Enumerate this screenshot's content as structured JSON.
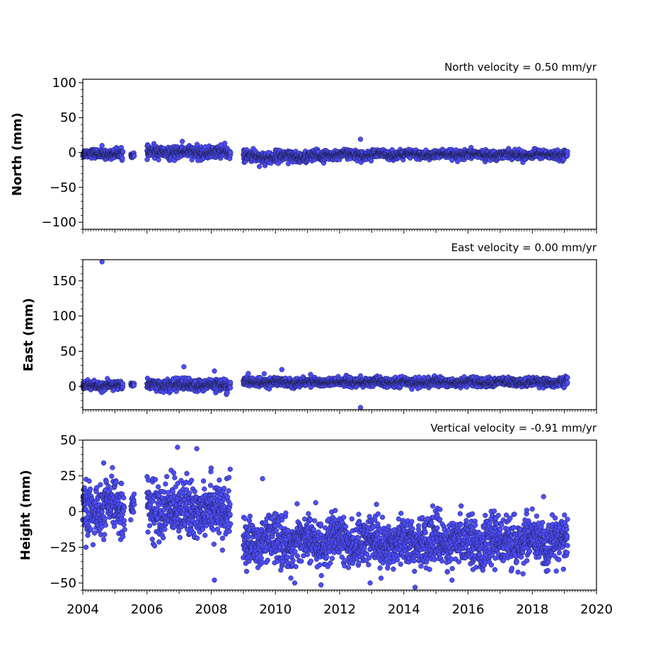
{
  "chart_data": [
    {
      "type": "scatter",
      "title": "North velocity = 0.50 mm/yr",
      "xlabel": "",
      "ylabel": "North (mm)",
      "xlim": [
        2004,
        2020
      ],
      "ylim": [
        -110,
        105
      ],
      "yticks": [
        100,
        50,
        0,
        -50,
        -100
      ],
      "ytick_labels": [
        "100",
        "50",
        "0",
        "−50",
        "−100"
      ],
      "marker_color": "#4d4dff",
      "outliers": [
        [
          2004.6,
          10
        ],
        [
          2007.1,
          16
        ],
        [
          2008.3,
          11
        ],
        [
          2009.5,
          -20
        ],
        [
          2010.4,
          -16
        ],
        [
          2012.65,
          19
        ],
        [
          2015.5,
          -11
        ]
      ],
      "segments": [
        {
          "start": 2004.0,
          "end": 2005.25,
          "center": -2,
          "spread": 3
        },
        {
          "start": 2005.5,
          "end": 2005.6,
          "center": -4,
          "spread": 2
        },
        {
          "start": 2006.0,
          "end": 2008.6,
          "center": 0,
          "spread": 4
        },
        {
          "start": 2009.0,
          "end": 2011.5,
          "center": -6,
          "spread": 4
        },
        {
          "start": 2011.5,
          "end": 2019.1,
          "center": -3,
          "spread": 3
        }
      ]
    },
    {
      "type": "scatter",
      "title": "East velocity = 0.00 mm/yr",
      "xlabel": "",
      "ylabel": "East (mm)",
      "xlim": [
        2004,
        2020
      ],
      "ylim": [
        -33,
        180
      ],
      "yticks": [
        150,
        100,
        50,
        0
      ],
      "ytick_labels": [
        "150",
        "100",
        "50",
        "0"
      ],
      "marker_color": "#4d4dff",
      "outliers": [
        [
          2004.6,
          177
        ],
        [
          2007.15,
          28
        ],
        [
          2008.1,
          22
        ],
        [
          2009.65,
          18
        ],
        [
          2010.2,
          24
        ],
        [
          2012.65,
          -30
        ],
        [
          2012.65,
          15
        ],
        [
          2014.25,
          -4
        ]
      ],
      "segments": [
        {
          "start": 2004.0,
          "end": 2005.25,
          "center": 1,
          "spread": 3
        },
        {
          "start": 2005.5,
          "end": 2005.6,
          "center": 3,
          "spread": 1
        },
        {
          "start": 2006.0,
          "end": 2008.6,
          "center": 2,
          "spread": 4
        },
        {
          "start": 2009.0,
          "end": 2019.1,
          "center": 6,
          "spread": 3
        }
      ]
    },
    {
      "type": "scatter",
      "title": "Vertical velocity = -0.91 mm/yr",
      "xlabel": "",
      "ylabel": "Height (mm)",
      "xlim": [
        2004,
        2020
      ],
      "ylim": [
        -55,
        50
      ],
      "yticks": [
        50,
        25,
        0,
        -25,
        -50
      ],
      "ytick_labels": [
        "50",
        "25",
        "0",
        "−25",
        "−50"
      ],
      "xticks": [
        2004,
        2006,
        2008,
        2010,
        2012,
        2014,
        2016,
        2018,
        2020
      ],
      "xtick_labels": [
        "2004",
        "2006",
        "2008",
        "2010",
        "2012",
        "2014",
        "2016",
        "2018",
        "2020"
      ],
      "marker_color": "#4d4dff",
      "outliers": [
        [
          2004.65,
          34
        ],
        [
          2006.95,
          45
        ],
        [
          2007.55,
          44
        ],
        [
          2008.1,
          -48
        ],
        [
          2009.6,
          23
        ],
        [
          2010.6,
          -50
        ],
        [
          2012.95,
          -50
        ],
        [
          2014.35,
          -53
        ],
        [
          2015.5,
          -48
        ],
        [
          2008.35,
          -27
        ],
        [
          2004.1,
          -25
        ]
      ],
      "segments": [
        {
          "start": 2004.0,
          "end": 2005.3,
          "center": 2,
          "spread": 9
        },
        {
          "start": 2005.5,
          "end": 2005.6,
          "center": 6,
          "spread": 4
        },
        {
          "start": 2006.0,
          "end": 2008.6,
          "center": 2,
          "spread": 10
        },
        {
          "start": 2009.0,
          "end": 2019.1,
          "center": -21,
          "spread": 8
        }
      ]
    }
  ]
}
